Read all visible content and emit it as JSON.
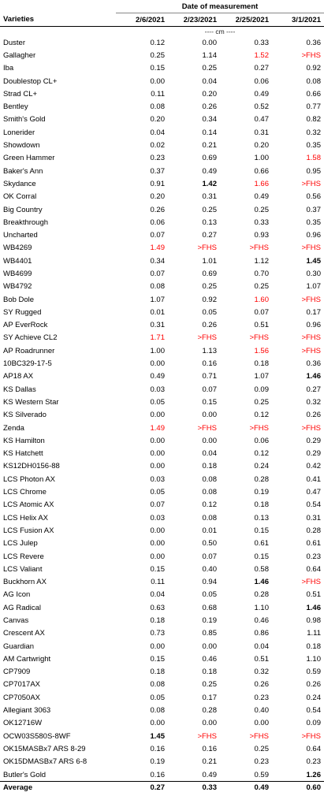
{
  "header": {
    "group_title": "Date of measurement",
    "varieties_label": "Varieties",
    "dates": [
      "2/6/2021",
      "2/23/2021",
      "2/25/2021",
      "3/1/2021"
    ],
    "units": "---- cm ----"
  },
  "rows": [
    {
      "name": "Duster",
      "values": [
        "0.12",
        "0.00",
        "0.33",
        "0.36"
      ]
    },
    {
      "name": "Gallagher",
      "values": [
        "0.25",
        "1.14",
        "1.52",
        ">FHS"
      ],
      "red": [
        2,
        3
      ]
    },
    {
      "name": "Iba",
      "values": [
        "0.15",
        "0.25",
        "0.27",
        "0.92"
      ]
    },
    {
      "name": "Doublestop CL+",
      "values": [
        "0.00",
        "0.04",
        "0.06",
        "0.08"
      ]
    },
    {
      "name": "Strad CL+",
      "values": [
        "0.11",
        "0.20",
        "0.49",
        "0.66"
      ]
    },
    {
      "name": "Bentley",
      "values": [
        "0.08",
        "0.26",
        "0.52",
        "0.77"
      ]
    },
    {
      "name": "Smith's Gold",
      "values": [
        "0.20",
        "0.34",
        "0.47",
        "0.82"
      ]
    },
    {
      "name": "Lonerider",
      "values": [
        "0.04",
        "0.14",
        "0.31",
        "0.32"
      ]
    },
    {
      "name": "Showdown",
      "values": [
        "0.02",
        "0.21",
        "0.20",
        "0.35"
      ]
    },
    {
      "name": "Green Hammer",
      "values": [
        "0.23",
        "0.69",
        "1.00",
        "1.58"
      ],
      "red": [
        3
      ]
    },
    {
      "name": "Baker's Ann",
      "values": [
        "0.37",
        "0.49",
        "0.66",
        "0.95"
      ]
    },
    {
      "name": "Skydance",
      "values": [
        "0.91",
        "1.42",
        "1.66",
        ">FHS"
      ],
      "bold": [
        1
      ],
      "red": [
        2,
        3
      ]
    },
    {
      "name": "OK Corral",
      "values": [
        "0.20",
        "0.31",
        "0.49",
        "0.56"
      ]
    },
    {
      "name": "Big Country",
      "values": [
        "0.26",
        "0.25",
        "0.25",
        "0.37"
      ]
    },
    {
      "name": "Breakthrough",
      "values": [
        "0.06",
        "0.13",
        "0.33",
        "0.35"
      ]
    },
    {
      "name": "Uncharted",
      "values": [
        "0.07",
        "0.27",
        "0.93",
        "0.96"
      ]
    },
    {
      "name": "WB4269",
      "values": [
        "1.49",
        ">FHS",
        ">FHS",
        ">FHS"
      ],
      "red": [
        0,
        1,
        2,
        3
      ]
    },
    {
      "name": "WB4401",
      "values": [
        "0.34",
        "1.01",
        "1.12",
        "1.45"
      ],
      "bold": [
        3
      ]
    },
    {
      "name": "WB4699",
      "values": [
        "0.07",
        "0.69",
        "0.70",
        "0.30"
      ]
    },
    {
      "name": "WB4792",
      "values": [
        "0.08",
        "0.25",
        "0.25",
        "1.07"
      ]
    },
    {
      "name": "Bob Dole",
      "values": [
        "1.07",
        "0.92",
        "1.60",
        ">FHS"
      ],
      "red": [
        2,
        3
      ]
    },
    {
      "name": "SY Rugged",
      "values": [
        "0.01",
        "0.05",
        "0.07",
        "0.17"
      ]
    },
    {
      "name": "AP EverRock",
      "values": [
        "0.31",
        "0.26",
        "0.51",
        "0.96"
      ]
    },
    {
      "name": "SY Achieve CL2",
      "values": [
        "1.71",
        ">FHS",
        ">FHS",
        ">FHS"
      ],
      "red": [
        0,
        1,
        2,
        3
      ]
    },
    {
      "name": "AP Roadrunner",
      "values": [
        "1.00",
        "1.13",
        "1.56",
        ">FHS"
      ],
      "red": [
        2,
        3
      ]
    },
    {
      "name": "10BC329-17-5",
      "values": [
        "0.00",
        "0.16",
        "0.18",
        "0.36"
      ]
    },
    {
      "name": "AP18 AX",
      "values": [
        "0.49",
        "0.71",
        "1.07",
        "1.46"
      ],
      "bold": [
        3
      ]
    },
    {
      "name": "KS Dallas",
      "values": [
        "0.03",
        "0.07",
        "0.09",
        "0.27"
      ]
    },
    {
      "name": "KS Western Star",
      "values": [
        "0.05",
        "0.15",
        "0.25",
        "0.32"
      ]
    },
    {
      "name": "KS Silverado",
      "values": [
        "0.00",
        "0.00",
        "0.12",
        "0.26"
      ]
    },
    {
      "name": "Zenda",
      "values": [
        "1.49",
        ">FHS",
        ">FHS",
        ">FHS"
      ],
      "red": [
        0,
        1,
        2,
        3
      ]
    },
    {
      "name": "KS Hamilton",
      "values": [
        "0.00",
        "0.00",
        "0.06",
        "0.29"
      ]
    },
    {
      "name": "KS Hatchett",
      "values": [
        "0.00",
        "0.04",
        "0.12",
        "0.29"
      ]
    },
    {
      "name": "KS12DH0156-88",
      "values": [
        "0.00",
        "0.18",
        "0.24",
        "0.42"
      ]
    },
    {
      "name": "LCS Photon AX",
      "values": [
        "0.03",
        "0.08",
        "0.28",
        "0.41"
      ]
    },
    {
      "name": "LCS Chrome",
      "values": [
        "0.05",
        "0.08",
        "0.19",
        "0.47"
      ]
    },
    {
      "name": "LCS Atomic AX",
      "values": [
        "0.07",
        "0.12",
        "0.18",
        "0.54"
      ]
    },
    {
      "name": "LCS Helix AX",
      "values": [
        "0.03",
        "0.08",
        "0.13",
        "0.31"
      ]
    },
    {
      "name": "LCS Fusion AX",
      "values": [
        "0.00",
        "0.01",
        "0.15",
        "0.28"
      ]
    },
    {
      "name": "LCS Julep",
      "values": [
        "0.00",
        "0.50",
        "0.61",
        "0.61"
      ]
    },
    {
      "name": "LCS Revere",
      "values": [
        "0.00",
        "0.07",
        "0.15",
        "0.23"
      ]
    },
    {
      "name": "LCS Valiant",
      "values": [
        "0.15",
        "0.40",
        "0.58",
        "0.64"
      ]
    },
    {
      "name": "Buckhorn AX",
      "values": [
        "0.11",
        "0.94",
        "1.46",
        ">FHS"
      ],
      "bold": [
        2
      ],
      "red": [
        3
      ]
    },
    {
      "name": "AG Icon",
      "values": [
        "0.04",
        "0.05",
        "0.28",
        "0.51"
      ]
    },
    {
      "name": "AG Radical",
      "values": [
        "0.63",
        "0.68",
        "1.10",
        "1.46"
      ],
      "bold": [
        3
      ]
    },
    {
      "name": "Canvas",
      "values": [
        "0.18",
        "0.19",
        "0.46",
        "0.98"
      ]
    },
    {
      "name": "Crescent AX",
      "values": [
        "0.73",
        "0.85",
        "0.86",
        "1.11"
      ]
    },
    {
      "name": "Guardian",
      "values": [
        "0.00",
        "0.00",
        "0.04",
        "0.18"
      ]
    },
    {
      "name": "AM Cartwright",
      "values": [
        "0.15",
        "0.46",
        "0.51",
        "1.10"
      ]
    },
    {
      "name": "CP7909",
      "values": [
        "0.18",
        "0.18",
        "0.32",
        "0.59"
      ]
    },
    {
      "name": "CP7017AX",
      "values": [
        "0.08",
        "0.25",
        "0.26",
        "0.26"
      ]
    },
    {
      "name": "CP7050AX",
      "values": [
        "0.05",
        "0.17",
        "0.23",
        "0.24"
      ]
    },
    {
      "name": "Allegiant 3063",
      "values": [
        "0.08",
        "0.28",
        "0.40",
        "0.54"
      ]
    },
    {
      "name": "OK12716W",
      "values": [
        "0.00",
        "0.00",
        "0.00",
        "0.09"
      ]
    },
    {
      "name": "OCW03S580S-8WF",
      "values": [
        "1.45",
        ">FHS",
        ">FHS",
        ">FHS"
      ],
      "bold": [
        0
      ],
      "red": [
        1,
        2,
        3
      ]
    },
    {
      "name": "OK15MASBx7 ARS 8-29",
      "values": [
        "0.16",
        "0.16",
        "0.25",
        "0.64"
      ]
    },
    {
      "name": "OK15DMASBx7 ARS 6-8",
      "values": [
        "0.19",
        "0.21",
        "0.23",
        "0.23"
      ]
    },
    {
      "name": "Butler's Gold",
      "values": [
        "0.16",
        "0.49",
        "0.59",
        "1.26"
      ],
      "bold": [
        3
      ]
    }
  ],
  "average": {
    "label": "Average",
    "values": [
      "0.27",
      "0.33",
      "0.49",
      "0.60"
    ]
  },
  "colors": {
    "highlight_red": "#ff0000",
    "text": "#000000",
    "background": "#ffffff"
  }
}
